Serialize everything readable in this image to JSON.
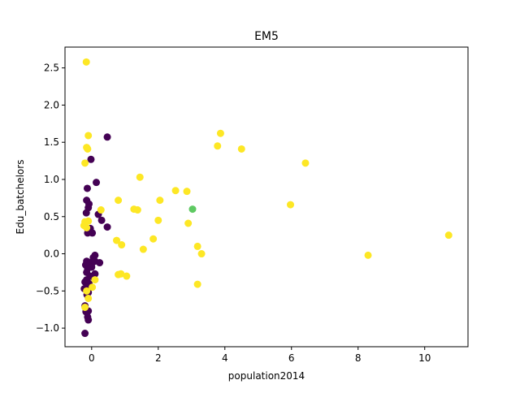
{
  "chart_data": {
    "type": "scatter",
    "title": "EM5",
    "xlabel": "population2014",
    "ylabel": "Edu_batchelors",
    "xlim": [
      -0.8,
      11.3
    ],
    "ylim": [
      -1.25,
      2.78
    ],
    "xticks": [
      0,
      2,
      4,
      6,
      8,
      10
    ],
    "yticks": [
      -1.0,
      -0.5,
      0.0,
      0.5,
      1.0,
      1.5,
      2.0,
      2.5
    ],
    "xtick_labels": [
      "0",
      "2",
      "4",
      "6",
      "8",
      "10"
    ],
    "ytick_labels": [
      "−1.0",
      "−0.5",
      "0.0",
      "0.5",
      "1.0",
      "1.5",
      "2.0",
      "2.5"
    ],
    "grid": false,
    "legend": "none",
    "colors": {
      "purple": "#440154",
      "yellow": "#fde725",
      "green": "#5ec962"
    },
    "series": [
      {
        "color": "#440154",
        "points": [
          [
            0.47,
            1.57
          ],
          [
            -0.02,
            1.27
          ],
          [
            0.14,
            0.96
          ],
          [
            -0.13,
            0.88
          ],
          [
            -0.15,
            0.72
          ],
          [
            -0.08,
            0.67
          ],
          [
            -0.1,
            0.62
          ],
          [
            -0.16,
            0.55
          ],
          [
            0.2,
            0.53
          ],
          [
            0.3,
            0.45
          ],
          [
            0.47,
            0.36
          ],
          [
            -0.04,
            0.34
          ],
          [
            0.02,
            0.28
          ],
          [
            -0.12,
            0.28
          ],
          [
            0.1,
            -0.02
          ],
          [
            0.05,
            -0.05
          ],
          [
            -0.15,
            -0.1
          ],
          [
            -0.05,
            -0.12
          ],
          [
            0.02,
            -0.12
          ],
          [
            0.1,
            -0.1
          ],
          [
            0.24,
            -0.12
          ],
          [
            -0.18,
            -0.15
          ],
          [
            -0.1,
            -0.16
          ],
          [
            0.0,
            -0.18
          ],
          [
            -0.12,
            -0.2
          ],
          [
            -0.15,
            -0.25
          ],
          [
            0.1,
            -0.27
          ],
          [
            -0.05,
            -0.3
          ],
          [
            0.03,
            -0.31
          ],
          [
            -0.15,
            -0.35
          ],
          [
            -0.2,
            -0.38
          ],
          [
            -0.08,
            -0.4
          ],
          [
            -0.12,
            -0.45
          ],
          [
            -0.22,
            -0.47
          ],
          [
            -0.1,
            -0.52
          ],
          [
            -0.14,
            -0.55
          ],
          [
            -0.2,
            -0.7
          ],
          [
            -0.1,
            -0.77
          ],
          [
            -0.17,
            -0.78
          ],
          [
            -0.12,
            -0.85
          ],
          [
            -0.1,
            -0.89
          ],
          [
            -0.2,
            -1.07
          ]
        ]
      },
      {
        "color": "#fde725",
        "points": [
          [
            -0.16,
            2.58
          ],
          [
            -0.1,
            1.59
          ],
          [
            -0.15,
            1.43
          ],
          [
            -0.12,
            1.41
          ],
          [
            -0.2,
            1.22
          ],
          [
            3.87,
            1.62
          ],
          [
            3.78,
            1.45
          ],
          [
            4.5,
            1.41
          ],
          [
            6.42,
            1.22
          ],
          [
            1.45,
            1.03
          ],
          [
            2.52,
            0.85
          ],
          [
            2.86,
            0.84
          ],
          [
            0.8,
            0.72
          ],
          [
            2.05,
            0.72
          ],
          [
            5.97,
            0.66
          ],
          [
            1.27,
            0.6
          ],
          [
            1.38,
            0.59
          ],
          [
            0.28,
            0.59
          ],
          [
            2.0,
            0.45
          ],
          [
            2.9,
            0.41
          ],
          [
            -0.2,
            0.43
          ],
          [
            -0.1,
            0.44
          ],
          [
            -0.23,
            0.38
          ],
          [
            -0.15,
            0.35
          ],
          [
            0.75,
            0.18
          ],
          [
            1.85,
            0.2
          ],
          [
            0.9,
            0.12
          ],
          [
            3.18,
            0.1
          ],
          [
            1.55,
            0.06
          ],
          [
            3.3,
            0.0
          ],
          [
            8.3,
            -0.02
          ],
          [
            10.72,
            0.25
          ],
          [
            0.8,
            -0.28
          ],
          [
            0.88,
            -0.27
          ],
          [
            1.05,
            -0.3
          ],
          [
            3.18,
            -0.41
          ],
          [
            0.1,
            -0.35
          ],
          [
            0.02,
            -0.45
          ],
          [
            -0.15,
            -0.5
          ],
          [
            -0.2,
            -0.72
          ],
          [
            -0.1,
            -0.6
          ]
        ]
      },
      {
        "color": "#5ec962",
        "points": [
          [
            3.03,
            0.6
          ]
        ]
      }
    ]
  }
}
